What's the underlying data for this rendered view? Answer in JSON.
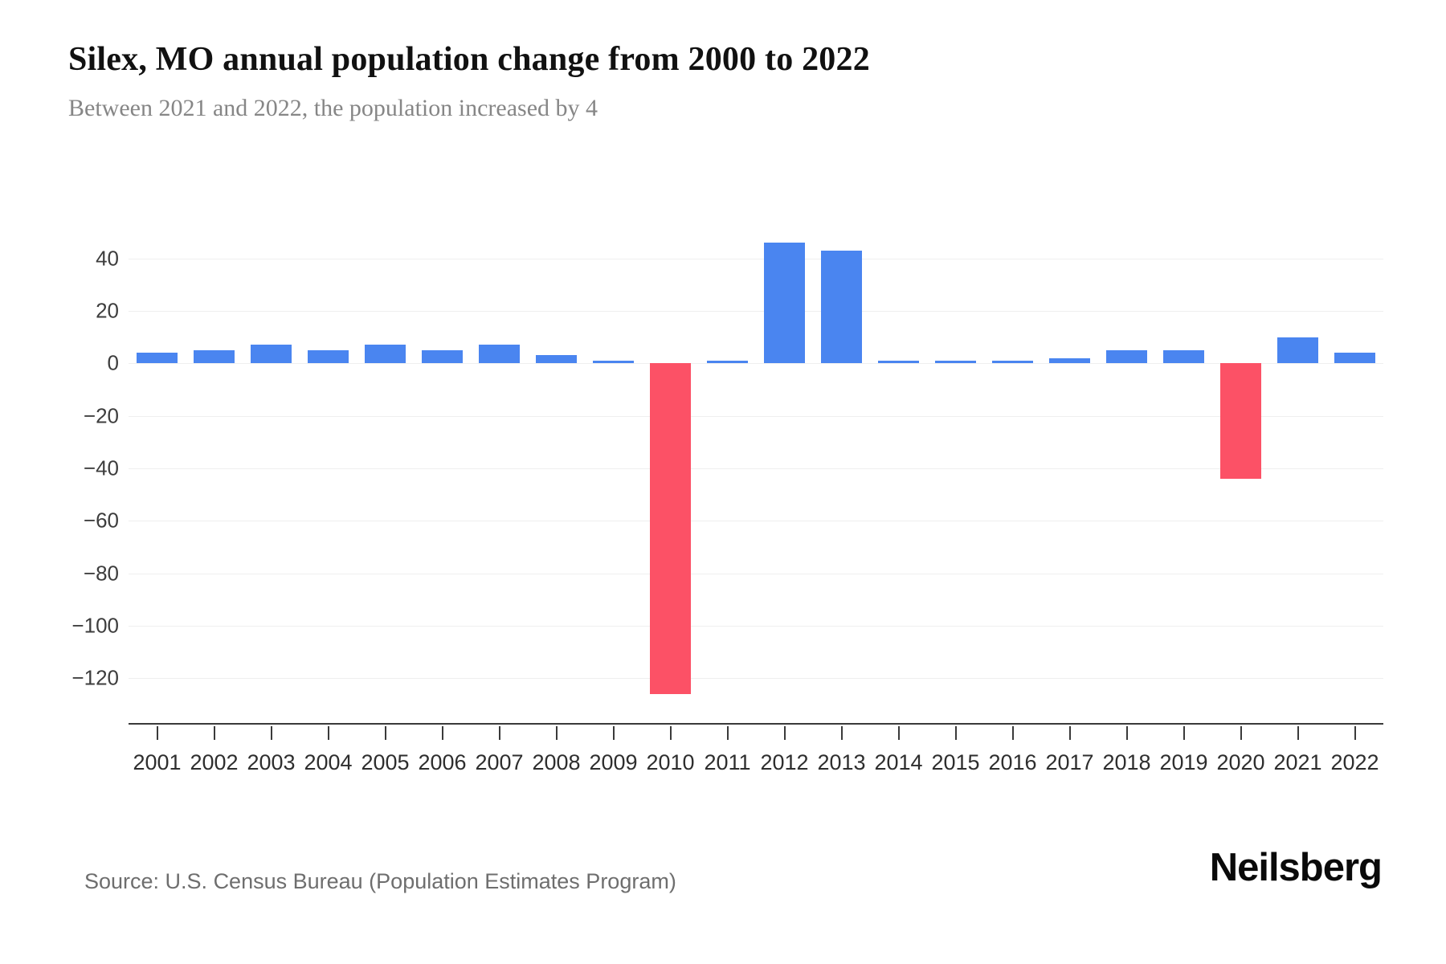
{
  "header": {
    "title": "Silex, MO annual population change from 2000 to 2022",
    "subtitle": "Between 2021 and 2022, the population increased by 4"
  },
  "footer": {
    "source": "Source: U.S. Census Bureau (Population Estimates Program)",
    "brand": "Neilsberg"
  },
  "colors": {
    "positive_bar": "#4A85F0",
    "negative_bar": "#FC5166",
    "gridline": "#EFEFEF",
    "axis_line": "#3A3A3A",
    "title_text": "#111111",
    "subtitle_text": "#868686",
    "tick_text": "#3D3D3D"
  },
  "chart_data": {
    "type": "bar",
    "title": "Silex, MO annual population change from 2000 to 2022",
    "subtitle": "Between 2021 and 2022, the population increased by 4",
    "xlabel": "",
    "ylabel": "",
    "categories": [
      "2001",
      "2002",
      "2003",
      "2004",
      "2005",
      "2006",
      "2007",
      "2008",
      "2009",
      "2010",
      "2011",
      "2012",
      "2013",
      "2014",
      "2015",
      "2016",
      "2017",
      "2018",
      "2019",
      "2020",
      "2021",
      "2022"
    ],
    "values": [
      4,
      5,
      7,
      5,
      7,
      5,
      7,
      3,
      1,
      -126,
      1,
      46,
      43,
      1,
      1,
      1,
      2,
      5,
      5,
      -44,
      10,
      4
    ],
    "positive_color": "#4A85F0",
    "negative_color": "#FC5166",
    "yticks": [
      40,
      20,
      0,
      -20,
      -40,
      -60,
      -80,
      -100,
      -120
    ],
    "ytick_labels": [
      "40",
      "20",
      "0",
      "−20",
      "−40",
      "−60",
      "−80",
      "−100",
      "−120"
    ],
    "ylim": [
      -137,
      68
    ],
    "grid": true,
    "legend": false,
    "bar_width_fraction": 0.72
  }
}
